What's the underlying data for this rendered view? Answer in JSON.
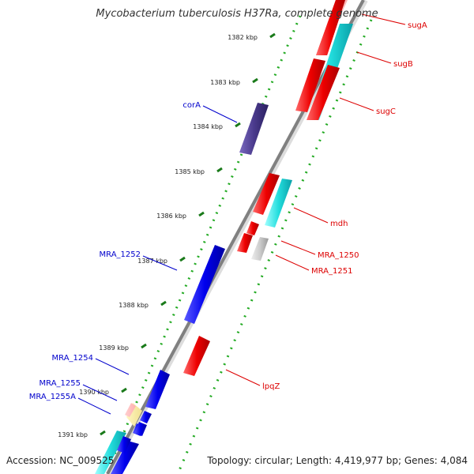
{
  "title": "Mycobacterium tuberculosis H37Ra, complete genome",
  "footer": {
    "accession": "Accession: NC_009525",
    "topology": "Topology: circular; Length: 4,419,977 bp; Genes: 4,084"
  },
  "colors": {
    "forward_label": "#0000cc",
    "reverse_label": "#dd0000",
    "tick_dots": "#22aa22",
    "tick_label": "#222222"
  },
  "ticks": [
    "1382 kbp",
    "1383 kbp",
    "1384 kbp",
    "1385 kbp",
    "1386 kbp",
    "1387 kbp",
    "1388 kbp",
    "1389 kbp",
    "1390 kbp",
    "1391 kbp"
  ],
  "genes": [
    {
      "label": "sugA",
      "strand": "reverse",
      "color": "#ee0000"
    },
    {
      "label": "sugB",
      "strand": "reverse",
      "color": "#ee0000"
    },
    {
      "label": "sugC",
      "strand": "reverse",
      "color": "#ee0000"
    },
    {
      "label": "corA",
      "strand": "forward",
      "color": "#4a3a8c"
    },
    {
      "label": "mdh",
      "strand": "reverse",
      "color": "#ee0000"
    },
    {
      "label": "MRA_1250",
      "strand": "reverse",
      "color": "#ee0000"
    },
    {
      "label": "MRA_1251",
      "strand": "reverse",
      "color": "#ee0000"
    },
    {
      "label": "MRA_1252",
      "strand": "forward",
      "color": "#0000ee"
    },
    {
      "label": "lpqZ",
      "strand": "reverse",
      "color": "#ee0000"
    },
    {
      "label": "MRA_1254",
      "strand": "forward",
      "color": "#0000ee"
    },
    {
      "label": "MRA_1255",
      "strand": "forward",
      "color": "#0000ee"
    },
    {
      "label": "MRA_1255A",
      "strand": "forward",
      "color": "#0000ee"
    }
  ]
}
